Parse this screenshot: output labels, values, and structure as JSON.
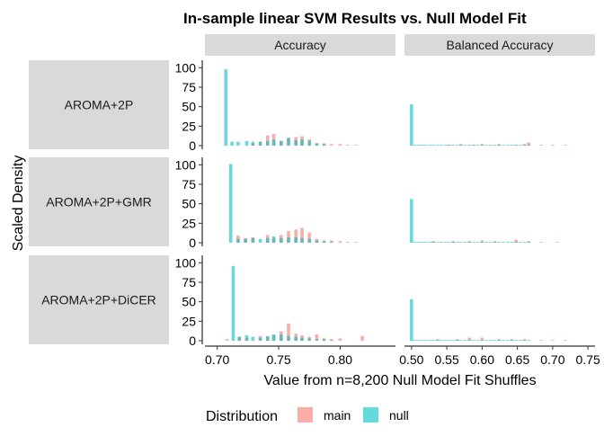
{
  "chart_data": {
    "type": "bar",
    "subtype": "faceted-histogram",
    "title": "In-sample linear SVM Results vs. Null Model Fit",
    "xlabel": "Value from n=8,200 Null Model Fit Shuffles",
    "ylabel": "Scaled Density",
    "columns": [
      "Accuracy",
      "Balanced Accuracy"
    ],
    "rows": [
      "AROMA+2P",
      "AROMA+2P+GMR",
      "AROMA+2P+DiCER"
    ],
    "y_ticks": [
      "0",
      "25",
      "50",
      "75",
      "100"
    ],
    "ylim": [
      0,
      105
    ],
    "x_axes": [
      {
        "xlim": [
          0.69,
          0.845
        ],
        "ticks": [
          0.7,
          0.75,
          0.8
        ],
        "tick_labels": [
          "0.70",
          "0.75",
          "0.80"
        ]
      },
      {
        "xlim": [
          0.49,
          0.76
        ],
        "ticks": [
          0.5,
          0.55,
          0.6,
          0.65,
          0.7,
          0.75
        ],
        "tick_labels": [
          "0.50",
          "0.55",
          "0.60",
          "0.65",
          "0.70",
          "0.75"
        ]
      }
    ],
    "legend": {
      "title": "Distribution",
      "position": "bottom",
      "entries": [
        "main",
        "null"
      ]
    },
    "series_colors": {
      "main": "#F8766D",
      "null": "#00BFC4"
    },
    "panels": [
      {
        "row": 0,
        "col": 0,
        "null": [
          [
            0.707,
            98
          ],
          [
            0.712,
            5
          ],
          [
            0.717,
            5
          ],
          [
            0.724,
            6
          ],
          [
            0.729,
            5
          ],
          [
            0.735,
            5
          ],
          [
            0.741,
            6
          ],
          [
            0.746,
            8
          ],
          [
            0.752,
            6
          ],
          [
            0.758,
            10
          ],
          [
            0.764,
            7
          ],
          [
            0.769,
            8
          ],
          [
            0.775,
            6
          ],
          [
            0.781,
            3
          ],
          [
            0.787,
            2
          ]
        ],
        "main": [
          [
            0.729,
            3
          ],
          [
            0.735,
            5
          ],
          [
            0.741,
            13
          ],
          [
            0.746,
            15
          ],
          [
            0.752,
            6
          ],
          [
            0.758,
            10
          ],
          [
            0.764,
            11
          ],
          [
            0.769,
            12
          ],
          [
            0.775,
            8
          ],
          [
            0.781,
            3
          ],
          [
            0.787,
            3
          ],
          [
            0.793,
            2
          ],
          [
            0.8,
            2
          ],
          [
            0.806,
            1
          ],
          [
            0.813,
            1
          ]
        ]
      },
      {
        "row": 0,
        "col": 1,
        "null": [
          [
            0.5,
            53
          ],
          [
            0.505,
            1
          ],
          [
            0.51,
            1
          ],
          [
            0.515,
            1
          ],
          [
            0.52,
            1
          ],
          [
            0.526,
            1
          ],
          [
            0.531,
            1
          ],
          [
            0.537,
            1
          ],
          [
            0.542,
            1
          ],
          [
            0.548,
            1
          ],
          [
            0.553,
            1
          ],
          [
            0.559,
            1
          ],
          [
            0.565,
            1
          ],
          [
            0.57,
            1
          ],
          [
            0.576,
            1
          ],
          [
            0.582,
            1
          ],
          [
            0.588,
            1
          ],
          [
            0.594,
            1
          ],
          [
            0.6,
            1
          ],
          [
            0.606,
            1
          ],
          [
            0.612,
            1
          ],
          [
            0.618,
            1
          ],
          [
            0.624,
            1
          ],
          [
            0.63,
            1
          ],
          [
            0.636,
            1
          ],
          [
            0.642,
            1
          ],
          [
            0.648,
            1
          ],
          [
            0.654,
            1
          ],
          [
            0.66,
            1
          ],
          [
            0.666,
            1
          ]
        ],
        "main": [
          [
            0.553,
            1
          ],
          [
            0.57,
            2
          ],
          [
            0.588,
            1
          ],
          [
            0.6,
            2
          ],
          [
            0.624,
            2
          ],
          [
            0.648,
            1
          ],
          [
            0.66,
            2
          ],
          [
            0.666,
            4
          ],
          [
            0.684,
            1
          ],
          [
            0.7,
            1
          ],
          [
            0.718,
            1
          ]
        ]
      },
      {
        "row": 1,
        "col": 0,
        "null": [
          [
            0.711,
            101
          ],
          [
            0.717,
            5
          ],
          [
            0.723,
            5
          ],
          [
            0.729,
            6
          ],
          [
            0.735,
            5
          ],
          [
            0.741,
            6
          ],
          [
            0.746,
            8
          ],
          [
            0.752,
            6
          ],
          [
            0.758,
            7
          ],
          [
            0.764,
            7
          ],
          [
            0.769,
            6
          ],
          [
            0.775,
            5
          ],
          [
            0.781,
            3
          ],
          [
            0.787,
            2
          ],
          [
            0.793,
            1
          ]
        ],
        "main": [
          [
            0.717,
            9
          ],
          [
            0.723,
            6
          ],
          [
            0.729,
            7
          ],
          [
            0.741,
            10
          ],
          [
            0.746,
            6
          ],
          [
            0.752,
            10
          ],
          [
            0.758,
            15
          ],
          [
            0.764,
            17
          ],
          [
            0.769,
            19
          ],
          [
            0.775,
            13
          ],
          [
            0.781,
            5
          ],
          [
            0.787,
            3
          ],
          [
            0.793,
            3
          ],
          [
            0.8,
            2
          ],
          [
            0.806,
            1
          ],
          [
            0.813,
            1
          ]
        ]
      },
      {
        "row": 1,
        "col": 1,
        "null": [
          [
            0.5,
            56
          ],
          [
            0.505,
            1
          ],
          [
            0.51,
            1
          ],
          [
            0.515,
            1
          ],
          [
            0.52,
            1
          ],
          [
            0.526,
            1
          ],
          [
            0.531,
            1
          ],
          [
            0.537,
            1
          ],
          [
            0.542,
            1
          ],
          [
            0.548,
            1
          ],
          [
            0.553,
            1
          ],
          [
            0.559,
            1
          ],
          [
            0.565,
            1
          ],
          [
            0.57,
            1
          ],
          [
            0.576,
            1
          ],
          [
            0.582,
            1
          ],
          [
            0.588,
            1
          ],
          [
            0.594,
            1
          ],
          [
            0.6,
            1
          ],
          [
            0.606,
            1
          ],
          [
            0.612,
            1
          ],
          [
            0.618,
            1
          ],
          [
            0.624,
            1
          ],
          [
            0.63,
            1
          ],
          [
            0.636,
            1
          ],
          [
            0.642,
            1
          ],
          [
            0.648,
            1
          ],
          [
            0.654,
            1
          ],
          [
            0.66,
            1
          ],
          [
            0.666,
            1
          ]
        ],
        "main": [
          [
            0.531,
            2
          ],
          [
            0.559,
            2
          ],
          [
            0.582,
            2
          ],
          [
            0.6,
            3
          ],
          [
            0.618,
            2
          ],
          [
            0.648,
            4
          ],
          [
            0.666,
            2
          ],
          [
            0.684,
            1
          ],
          [
            0.706,
            1
          ]
        ]
      },
      {
        "row": 2,
        "col": 0,
        "null": [
          [
            0.713,
            96
          ],
          [
            0.718,
            5
          ],
          [
            0.724,
            7
          ],
          [
            0.729,
            5
          ],
          [
            0.735,
            4
          ],
          [
            0.741,
            6
          ],
          [
            0.746,
            8
          ],
          [
            0.752,
            8
          ],
          [
            0.758,
            6
          ],
          [
            0.764,
            5
          ],
          [
            0.769,
            4
          ],
          [
            0.775,
            3
          ],
          [
            0.781,
            2
          ],
          [
            0.787,
            2
          ],
          [
            0.793,
            1
          ]
        ],
        "main": [
          [
            0.708,
            2
          ],
          [
            0.718,
            5
          ],
          [
            0.724,
            4
          ],
          [
            0.735,
            6
          ],
          [
            0.741,
            5
          ],
          [
            0.746,
            7
          ],
          [
            0.752,
            12
          ],
          [
            0.758,
            22
          ],
          [
            0.764,
            9
          ],
          [
            0.769,
            7
          ],
          [
            0.775,
            5
          ],
          [
            0.781,
            8
          ],
          [
            0.787,
            3
          ],
          [
            0.793,
            2
          ],
          [
            0.8,
            3
          ],
          [
            0.818,
            6
          ]
        ]
      },
      {
        "row": 2,
        "col": 1,
        "null": [
          [
            0.5,
            53
          ],
          [
            0.505,
            1
          ],
          [
            0.51,
            1
          ],
          [
            0.515,
            1
          ],
          [
            0.52,
            1
          ],
          [
            0.526,
            1
          ],
          [
            0.531,
            1
          ],
          [
            0.537,
            1
          ],
          [
            0.542,
            1
          ],
          [
            0.548,
            1
          ],
          [
            0.553,
            1
          ],
          [
            0.559,
            1
          ],
          [
            0.565,
            1
          ],
          [
            0.57,
            1
          ],
          [
            0.576,
            1
          ],
          [
            0.582,
            1
          ],
          [
            0.588,
            1
          ],
          [
            0.594,
            1
          ],
          [
            0.6,
            1
          ],
          [
            0.606,
            1
          ],
          [
            0.612,
            1
          ],
          [
            0.618,
            1
          ],
          [
            0.624,
            1
          ],
          [
            0.63,
            1
          ],
          [
            0.636,
            1
          ],
          [
            0.642,
            1
          ],
          [
            0.648,
            1
          ],
          [
            0.654,
            1
          ],
          [
            0.66,
            1
          ],
          [
            0.666,
            1
          ]
        ],
        "main": [
          [
            0.537,
            2
          ],
          [
            0.565,
            2
          ],
          [
            0.582,
            4
          ],
          [
            0.6,
            4
          ],
          [
            0.624,
            2
          ],
          [
            0.642,
            2
          ],
          [
            0.66,
            2
          ],
          [
            0.684,
            1
          ],
          [
            0.7,
            1
          ],
          [
            0.718,
            1
          ]
        ]
      }
    ]
  }
}
